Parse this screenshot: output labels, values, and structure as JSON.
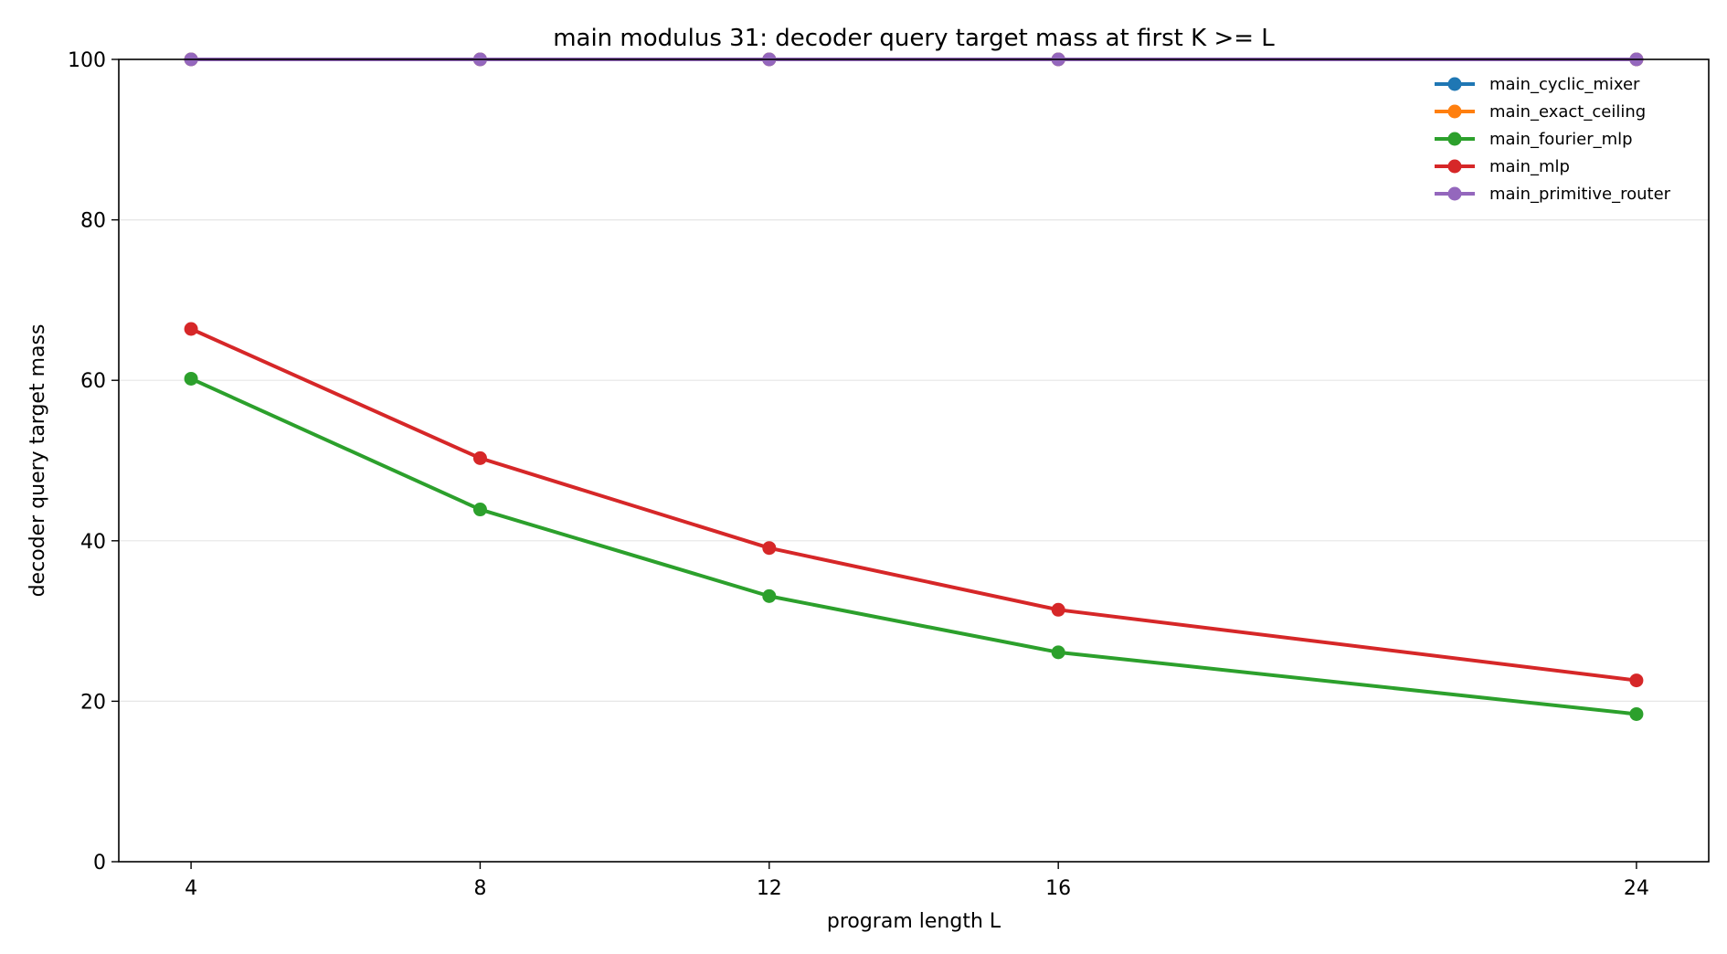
{
  "chart_data": {
    "type": "line",
    "title": "main modulus 31: decoder query target mass at first K >= L",
    "xlabel": "program length L",
    "ylabel": "decoder query target mass",
    "x": [
      4,
      8,
      12,
      16,
      24
    ],
    "xticks": [
      4,
      8,
      12,
      16,
      24
    ],
    "yticks": [
      0,
      20,
      40,
      60,
      80,
      100
    ],
    "xlim": [
      3,
      25
    ],
    "ylim": [
      0,
      100
    ],
    "grid": "horizontal",
    "legend_position": "top-right",
    "series": [
      {
        "name": "main_cyclic_mixer",
        "color": "#1f77b4",
        "values": [
          100,
          100,
          100,
          100,
          100
        ]
      },
      {
        "name": "main_exact_ceiling",
        "color": "#ff7f0e",
        "values": [
          100,
          100,
          100,
          100,
          100
        ]
      },
      {
        "name": "main_fourier_mlp",
        "color": "#2ca02c",
        "values": [
          60.2,
          43.9,
          33.1,
          26.1,
          18.4
        ]
      },
      {
        "name": "main_mlp",
        "color": "#d62728",
        "values": [
          66.4,
          50.3,
          39.1,
          31.4,
          22.6
        ]
      },
      {
        "name": "main_primitive_router",
        "color": "#9467bd",
        "values": [
          100,
          100,
          100,
          100,
          100
        ]
      }
    ]
  }
}
